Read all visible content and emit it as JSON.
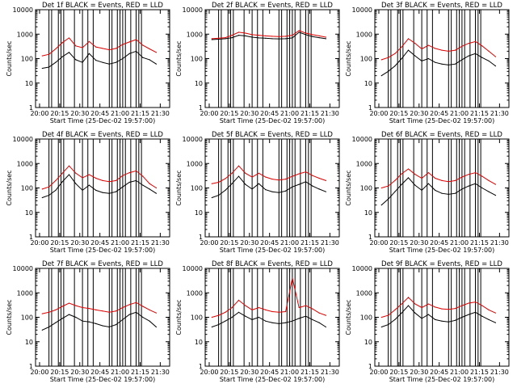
{
  "chart_data": {
    "type": "line",
    "layout": "3x3 grid",
    "x": {
      "ticks": [
        "20:00",
        "20:15",
        "20:30",
        "20:45",
        "21:00",
        "21:15",
        "21:30"
      ],
      "range_min": [
        0,
        100
      ],
      "label": "Start Time (25-Dec-02 19:57:00)"
    },
    "y": {
      "scale": "log",
      "range": [
        1,
        10000
      ],
      "tick_values": [
        1,
        10,
        100,
        1000,
        10000
      ],
      "tick_labels": [
        "1",
        "10",
        "100",
        "1000",
        "10000"
      ],
      "label": "Counts/sec"
    },
    "legend_text": "BLACK = Events, RED = LLD",
    "series_colors": {
      "events": "#000000",
      "lld": "#e00000"
    },
    "panels": [
      {
        "title": "Det 1f BLACK = Events, RED = LLD",
        "times": [
          5,
          10,
          15,
          20,
          25,
          30,
          35,
          40,
          45,
          50,
          55,
          60,
          65,
          70,
          75,
          80,
          85,
          90
        ],
        "events": [
          40,
          45,
          70,
          120,
          180,
          90,
          70,
          160,
          85,
          70,
          60,
          70,
          100,
          160,
          200,
          110,
          90,
          60
        ],
        "lld": [
          130,
          150,
          250,
          450,
          700,
          330,
          280,
          500,
          300,
          260,
          230,
          260,
          380,
          480,
          600,
          350,
          250,
          180
        ],
        "gaps": [
          10,
          12,
          17,
          19,
          21,
          29,
          35,
          39,
          43,
          55,
          57,
          61,
          63,
          65,
          67,
          71,
          75,
          77,
          79
        ]
      },
      {
        "title": "Det 2f BLACK = Events, RED = LLD",
        "times": [
          5,
          10,
          15,
          20,
          25,
          30,
          35,
          40,
          45,
          50,
          55,
          60,
          65,
          70,
          75,
          80,
          85,
          90
        ],
        "events": [
          600,
          620,
          650,
          720,
          900,
          850,
          750,
          700,
          680,
          650,
          640,
          650,
          700,
          1200,
          950,
          800,
          720,
          650
        ],
        "lld": [
          650,
          680,
          720,
          900,
          1200,
          1100,
          950,
          900,
          850,
          820,
          800,
          820,
          900,
          1400,
          1100,
          950,
          850,
          750
        ],
        "gaps": [
          10,
          12,
          17,
          19,
          21,
          29,
          35,
          39,
          43,
          55,
          57,
          61,
          63,
          65,
          67,
          71,
          75,
          77,
          79
        ]
      },
      {
        "title": "Det 3f BLACK = Events, RED = LLD",
        "times": [
          5,
          10,
          15,
          20,
          25,
          30,
          35,
          40,
          45,
          50,
          55,
          60,
          65,
          70,
          75,
          80,
          85,
          90
        ],
        "events": [
          20,
          30,
          50,
          100,
          220,
          130,
          80,
          100,
          70,
          60,
          55,
          60,
          90,
          130,
          160,
          110,
          80,
          50
        ],
        "lld": [
          90,
          110,
          160,
          300,
          650,
          420,
          250,
          350,
          260,
          220,
          200,
          220,
          320,
          420,
          500,
          330,
          200,
          120
        ],
        "gaps": [
          10,
          12,
          17,
          19,
          21,
          29,
          35,
          39,
          43,
          55,
          57,
          61,
          63,
          65,
          67,
          71,
          75,
          77,
          79
        ]
      },
      {
        "title": "Det 4f BLACK = Events, RED = LLD",
        "times": [
          5,
          10,
          15,
          20,
          25,
          30,
          35,
          40,
          45,
          50,
          55,
          60,
          65,
          70,
          75,
          80,
          85,
          90
        ],
        "events": [
          40,
          50,
          80,
          180,
          350,
          150,
          80,
          130,
          80,
          65,
          60,
          70,
          110,
          170,
          200,
          130,
          90,
          60
        ],
        "lld": [
          90,
          110,
          200,
          400,
          800,
          400,
          260,
          350,
          250,
          200,
          180,
          200,
          320,
          420,
          500,
          300,
          150,
          100
        ],
        "gaps": [
          10,
          12,
          17,
          19,
          21,
          29,
          35,
          39,
          43,
          55,
          57,
          61,
          63,
          65,
          67,
          71,
          75,
          77,
          79
        ]
      },
      {
        "title": "Det 5f BLACK = Events, RED = LLD",
        "times": [
          5,
          10,
          15,
          20,
          25,
          30,
          35,
          40,
          45,
          50,
          55,
          60,
          65,
          70,
          75,
          80,
          85,
          90
        ],
        "events": [
          40,
          50,
          80,
          150,
          300,
          140,
          90,
          150,
          85,
          70,
          65,
          75,
          110,
          140,
          180,
          120,
          90,
          70
        ],
        "lld": [
          150,
          170,
          240,
          400,
          800,
          400,
          280,
          400,
          280,
          230,
          210,
          230,
          300,
          380,
          450,
          320,
          250,
          200
        ],
        "gaps": [
          10,
          12,
          17,
          19,
          21,
          29,
          35,
          39,
          43,
          55,
          57,
          61,
          63,
          65,
          67,
          71,
          75,
          77,
          79
        ]
      },
      {
        "title": "Det 6f BLACK = Events, RED = LLD",
        "times": [
          5,
          10,
          15,
          20,
          25,
          30,
          35,
          40,
          45,
          50,
          55,
          60,
          65,
          70,
          75,
          80,
          85,
          90
        ],
        "events": [
          20,
          35,
          70,
          140,
          260,
          130,
          80,
          150,
          80,
          60,
          55,
          60,
          90,
          120,
          150,
          100,
          70,
          50
        ],
        "lld": [
          100,
          120,
          200,
          380,
          600,
          360,
          250,
          420,
          250,
          200,
          180,
          200,
          280,
          360,
          420,
          300,
          200,
          140
        ],
        "gaps": [
          10,
          12,
          17,
          19,
          21,
          29,
          35,
          39,
          43,
          55,
          57,
          61,
          63,
          65,
          67,
          71,
          75,
          77,
          79
        ]
      },
      {
        "title": "Det 7f BLACK = Events, RED = LLD",
        "times": [
          5,
          10,
          15,
          20,
          25,
          30,
          35,
          40,
          45,
          50,
          55,
          60,
          65,
          70,
          75,
          80,
          85,
          90
        ],
        "events": [
          30,
          40,
          60,
          90,
          130,
          100,
          70,
          65,
          55,
          45,
          40,
          50,
          80,
          130,
          160,
          100,
          70,
          40
        ],
        "lld": [
          140,
          160,
          200,
          280,
          380,
          300,
          250,
          230,
          200,
          180,
          160,
          180,
          250,
          330,
          400,
          280,
          200,
          150
        ],
        "gaps": [
          10,
          12,
          17,
          19,
          21,
          29,
          35,
          39,
          43,
          55,
          57,
          61,
          63,
          65,
          67,
          71,
          75,
          77,
          79
        ]
      },
      {
        "title": "Det 8f BLACK = Events, RED = LLD",
        "times": [
          5,
          10,
          15,
          20,
          25,
          30,
          35,
          40,
          45,
          50,
          55,
          60,
          65,
          70,
          75,
          80,
          85,
          90
        ],
        "events": [
          40,
          50,
          70,
          100,
          160,
          110,
          80,
          100,
          70,
          60,
          55,
          60,
          70,
          90,
          110,
          80,
          60,
          40
        ],
        "lld": [
          100,
          120,
          160,
          250,
          500,
          300,
          200,
          250,
          200,
          170,
          160,
          170,
          4000,
          250,
          300,
          220,
          150,
          120
        ],
        "gaps": [
          10,
          12,
          17,
          19,
          21,
          29,
          35,
          39,
          43,
          55,
          57,
          61,
          63,
          65,
          67,
          71,
          75,
          77,
          79
        ]
      },
      {
        "title": "Det 9f BLACK = Events, RED = LLD",
        "times": [
          5,
          10,
          15,
          20,
          25,
          30,
          35,
          40,
          45,
          50,
          55,
          60,
          65,
          70,
          75,
          80,
          85,
          90
        ],
        "events": [
          40,
          50,
          80,
          150,
          300,
          150,
          90,
          130,
          80,
          70,
          65,
          75,
          100,
          130,
          160,
          110,
          80,
          60
        ],
        "lld": [
          100,
          120,
          200,
          350,
          650,
          350,
          250,
          350,
          260,
          220,
          210,
          230,
          300,
          380,
          420,
          300,
          200,
          150
        ],
        "gaps": [
          10,
          12,
          17,
          19,
          21,
          29,
          35,
          39,
          43,
          55,
          57,
          61,
          63,
          65,
          67,
          71,
          75,
          77,
          79
        ]
      }
    ]
  }
}
